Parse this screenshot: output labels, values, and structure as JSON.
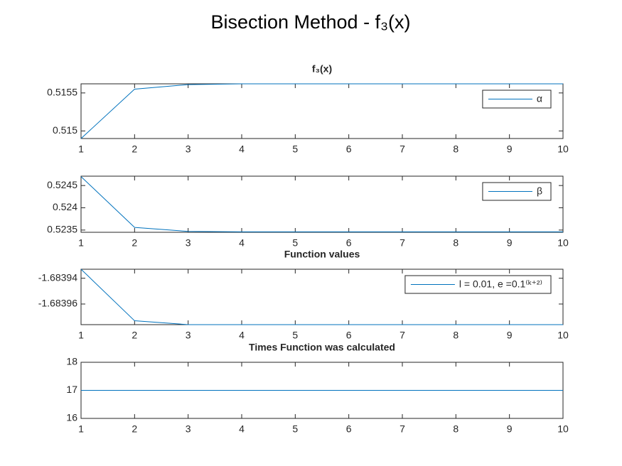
{
  "title": "Bisection Method - f₃(x)",
  "chart_data": [
    {
      "type": "line",
      "title": "f₃(x)",
      "x": [
        1,
        2,
        3,
        4,
        5,
        6,
        7,
        8,
        9,
        10
      ],
      "xlim": [
        1,
        10
      ],
      "xticks": [
        1,
        2,
        3,
        4,
        5,
        6,
        7,
        8,
        9,
        10
      ],
      "ylim": [
        0.5149,
        0.51562
      ],
      "yticks": [
        0.515,
        0.5155
      ],
      "legend": "northeast",
      "series": [
        {
          "name": "α",
          "color": "#0072bd",
          "values": [
            0.5149,
            0.51555,
            0.51561,
            0.51562,
            0.51562,
            0.51562,
            0.51562,
            0.51562,
            0.51562,
            0.51562
          ]
        }
      ]
    },
    {
      "type": "line",
      "x": [
        1,
        2,
        3,
        4,
        5,
        6,
        7,
        8,
        9,
        10
      ],
      "xlim": [
        1,
        10
      ],
      "xticks": [
        1,
        2,
        3,
        4,
        5,
        6,
        7,
        8,
        9,
        10
      ],
      "ylim": [
        0.52345,
        0.52471
      ],
      "yticks": [
        0.5235,
        0.524,
        0.5245
      ],
      "legend": "northeast",
      "series": [
        {
          "name": "β",
          "color": "#0072bd",
          "values": [
            0.5247,
            0.52356,
            0.52347,
            0.52346,
            0.52346,
            0.52346,
            0.52346,
            0.52346,
            0.52346,
            0.52346
          ]
        }
      ]
    },
    {
      "type": "line",
      "title": "Function values",
      "x": [
        1,
        2,
        3,
        4,
        5,
        6,
        7,
        8,
        9,
        10
      ],
      "xlim": [
        1,
        10
      ],
      "xticks": [
        1,
        2,
        3,
        4,
        5,
        6,
        7,
        8,
        9,
        10
      ],
      "ylim": [
        -1.683976,
        -1.683933
      ],
      "yticks": [
        -1.68396,
        -1.68394
      ],
      "legend": "northeast",
      "series": [
        {
          "name": "l = 0.01, e =0.1⁽ᵏ⁺²⁾",
          "color": "#0072bd",
          "values": [
            -1.683933,
            -1.683973,
            -1.683976,
            -1.683976,
            -1.683976,
            -1.683976,
            -1.683976,
            -1.683976,
            -1.683976,
            -1.683976
          ]
        }
      ]
    },
    {
      "type": "line",
      "title": "Times Function was calculated",
      "x": [
        1,
        2,
        3,
        4,
        5,
        6,
        7,
        8,
        9,
        10
      ],
      "xlim": [
        1,
        10
      ],
      "xticks": [
        1,
        2,
        3,
        4,
        5,
        6,
        7,
        8,
        9,
        10
      ],
      "ylim": [
        16,
        18
      ],
      "yticks": [
        16,
        17,
        18
      ],
      "series": [
        {
          "color": "#0072bd",
          "values": [
            17,
            17,
            17,
            17,
            17,
            17,
            17,
            17,
            17,
            17
          ]
        }
      ]
    }
  ]
}
